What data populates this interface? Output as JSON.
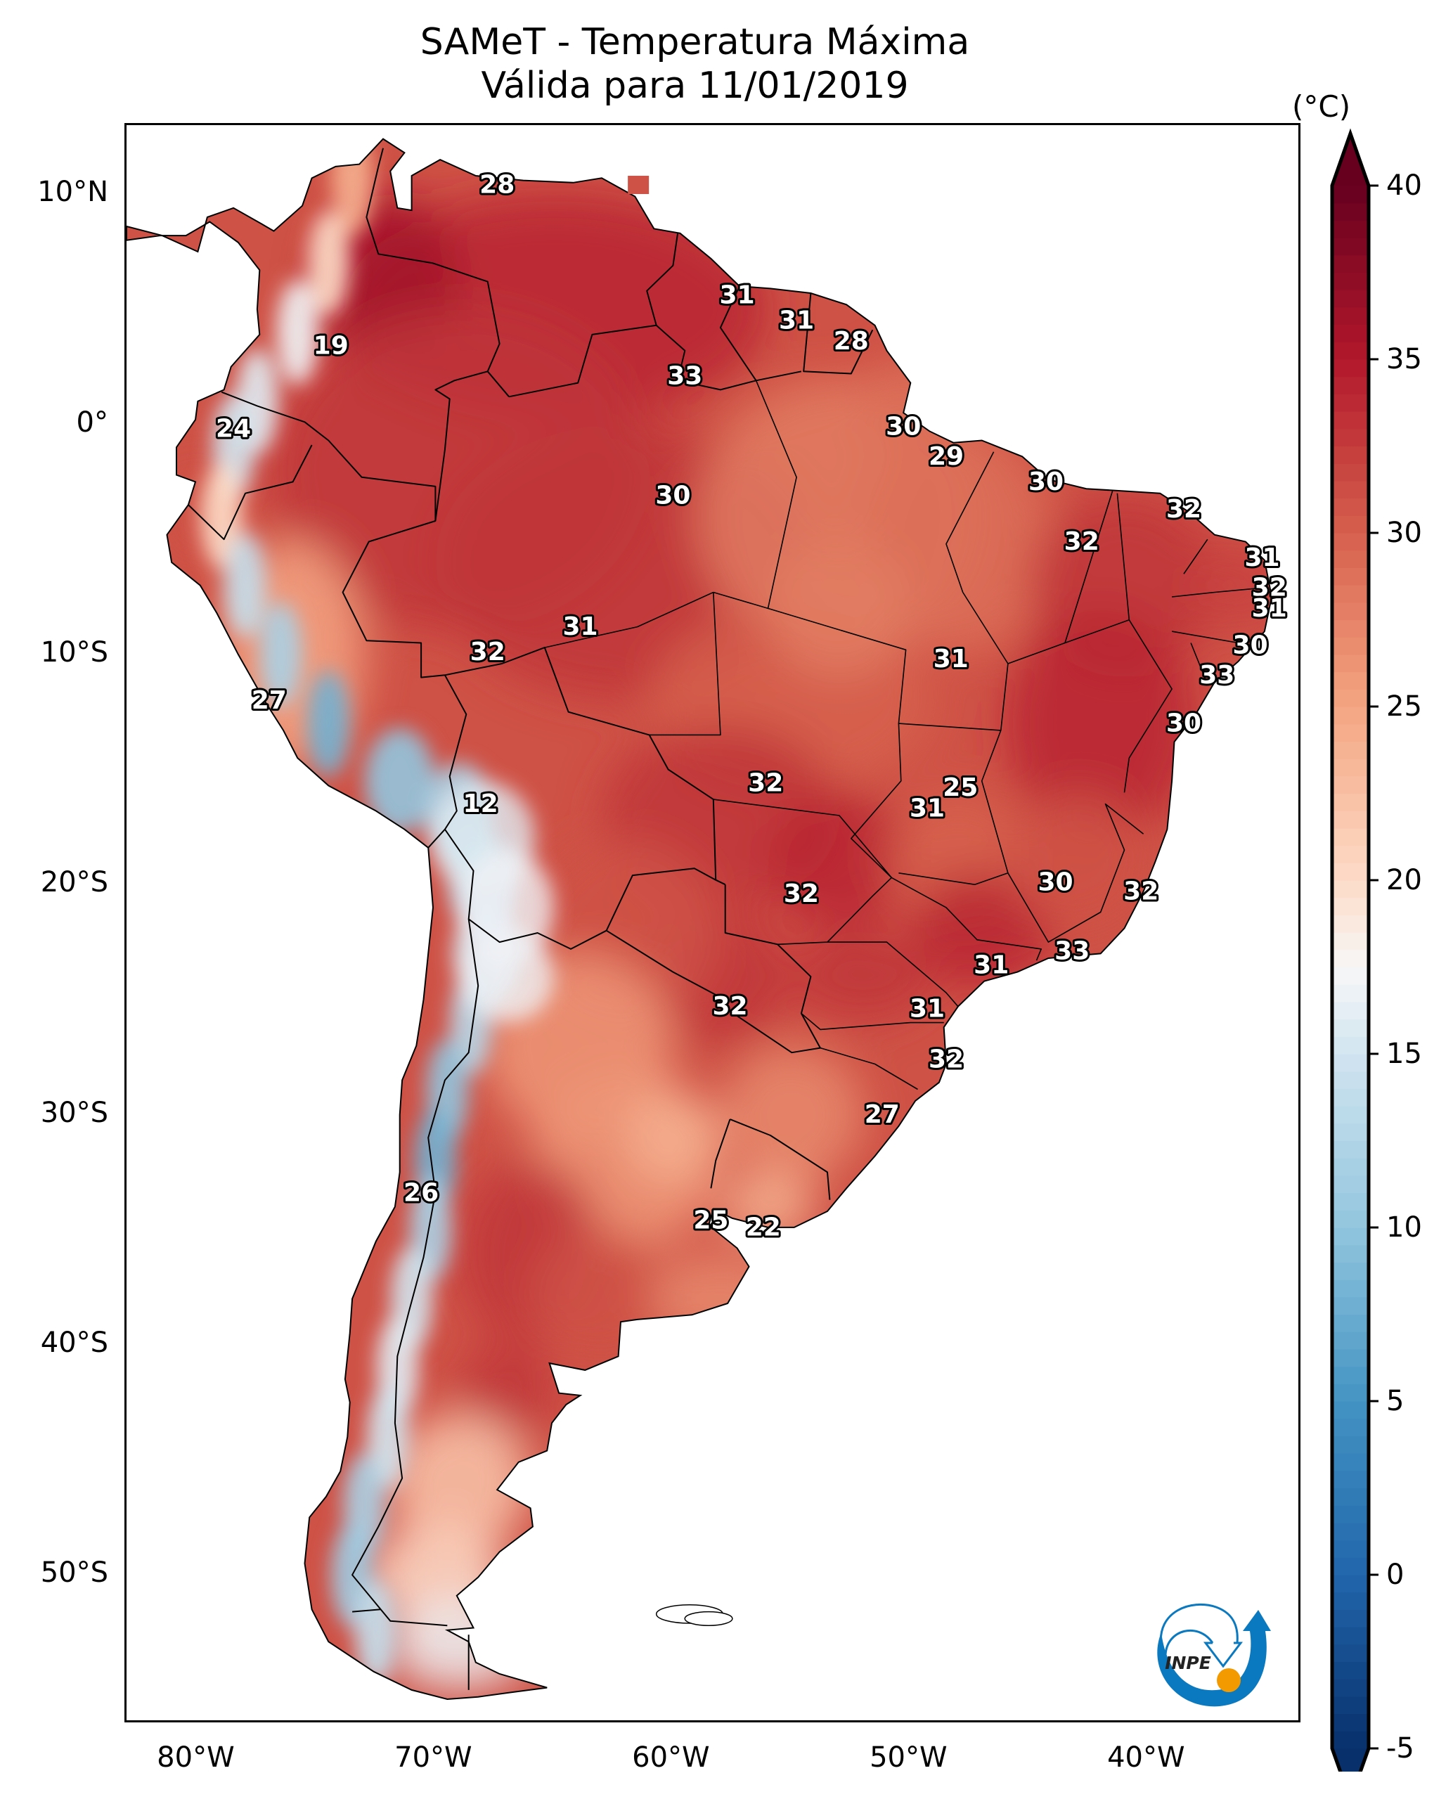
{
  "title": {
    "line1": "SAMeT - Temperatura Máxima",
    "line2": "Válida para 11/01/2019"
  },
  "chart_data": {
    "type": "heatmap",
    "title": "SAMeT - Temperatura Máxima — Válida para 11/01/2019",
    "variable": "Maximum temperature",
    "units": "(°C)",
    "region": "South America",
    "lon_range": [
      -83,
      -33.5
    ],
    "lat_range": [
      -56.5,
      13
    ],
    "lat_ticks": [
      {
        "value": 10,
        "label": "10°N"
      },
      {
        "value": 0,
        "label": "0°"
      },
      {
        "value": -10,
        "label": "10°S"
      },
      {
        "value": -20,
        "label": "20°S"
      },
      {
        "value": -30,
        "label": "30°S"
      },
      {
        "value": -40,
        "label": "40°S"
      },
      {
        "value": -50,
        "label": "50°S"
      }
    ],
    "lon_ticks": [
      {
        "value": -80,
        "label": "80°W"
      },
      {
        "value": -70,
        "label": "70°W"
      },
      {
        "value": -60,
        "label": "60°W"
      },
      {
        "value": -50,
        "label": "50°W"
      },
      {
        "value": -40,
        "label": "40°W"
      }
    ],
    "colorbar": {
      "label": "(°C)",
      "min": -5,
      "max": 40,
      "extend": "both",
      "colormap": "RdBu_r",
      "ticks": [
        40,
        35,
        30,
        25,
        20,
        15,
        10,
        5,
        0,
        -5
      ],
      "stops": [
        {
          "value": -5,
          "color": "#08306b"
        },
        {
          "value": 0,
          "color": "#2166ac"
        },
        {
          "value": 5,
          "color": "#4393c3"
        },
        {
          "value": 10,
          "color": "#92c5de"
        },
        {
          "value": 15,
          "color": "#d1e5f0"
        },
        {
          "value": 17.5,
          "color": "#f7f7f7"
        },
        {
          "value": 20,
          "color": "#fddbc7"
        },
        {
          "value": 25,
          "color": "#f4a582"
        },
        {
          "value": 30,
          "color": "#d6604d"
        },
        {
          "value": 35,
          "color": "#b2182b"
        },
        {
          "value": 40,
          "color": "#67001f"
        }
      ]
    },
    "city_values": [
      {
        "lon": -67.4,
        "lat": 10.4,
        "value": 28
      },
      {
        "lon": -57.3,
        "lat": 5.6,
        "value": 31
      },
      {
        "lon": -54.8,
        "lat": 4.5,
        "value": 31
      },
      {
        "lon": -52.5,
        "lat": 3.6,
        "value": 28
      },
      {
        "lon": -74.4,
        "lat": 3.4,
        "value": 19
      },
      {
        "lon": -59.5,
        "lat": 2.1,
        "value": 33
      },
      {
        "lon": -78.5,
        "lat": -0.2,
        "value": 24
      },
      {
        "lon": -50.3,
        "lat": -0.1,
        "value": 30
      },
      {
        "lon": -48.5,
        "lat": -1.4,
        "value": 29
      },
      {
        "lon": -60.0,
        "lat": -3.1,
        "value": 30
      },
      {
        "lon": -44.3,
        "lat": -2.5,
        "value": 30
      },
      {
        "lon": -38.5,
        "lat": -3.7,
        "value": 32
      },
      {
        "lon": -42.8,
        "lat": -5.1,
        "value": 32
      },
      {
        "lon": -35.2,
        "lat": -5.8,
        "value": 31
      },
      {
        "lon": -34.9,
        "lat": -7.1,
        "value": 32
      },
      {
        "lon": -34.9,
        "lat": -8.0,
        "value": 31
      },
      {
        "lon": -63.9,
        "lat": -8.8,
        "value": 31
      },
      {
        "lon": -67.8,
        "lat": -9.9,
        "value": 32
      },
      {
        "lon": -48.3,
        "lat": -10.2,
        "value": 31
      },
      {
        "lon": -35.7,
        "lat": -9.6,
        "value": 30
      },
      {
        "lon": -37.1,
        "lat": -10.9,
        "value": 33
      },
      {
        "lon": -77.0,
        "lat": -12.0,
        "value": 27
      },
      {
        "lon": -38.5,
        "lat": -13.0,
        "value": 30
      },
      {
        "lon": -47.9,
        "lat": -15.8,
        "value": 25
      },
      {
        "lon": -56.1,
        "lat": -15.6,
        "value": 32
      },
      {
        "lon": -49.3,
        "lat": -16.7,
        "value": 31
      },
      {
        "lon": -68.1,
        "lat": -16.5,
        "value": 12
      },
      {
        "lon": -43.9,
        "lat": -19.9,
        "value": 30
      },
      {
        "lon": -40.3,
        "lat": -20.3,
        "value": 32
      },
      {
        "lon": -54.6,
        "lat": -20.4,
        "value": 32
      },
      {
        "lon": -43.2,
        "lat": -22.9,
        "value": 33
      },
      {
        "lon": -46.6,
        "lat": -23.5,
        "value": 31
      },
      {
        "lon": -57.6,
        "lat": -25.3,
        "value": 32
      },
      {
        "lon": -49.3,
        "lat": -25.4,
        "value": 31
      },
      {
        "lon": -48.5,
        "lat": -27.6,
        "value": 32
      },
      {
        "lon": -51.2,
        "lat": -30.0,
        "value": 27
      },
      {
        "lon": -70.6,
        "lat": -33.4,
        "value": 26
      },
      {
        "lon": -58.4,
        "lat": -34.6,
        "value": 25
      },
      {
        "lon": -56.2,
        "lat": -34.9,
        "value": 22
      }
    ]
  },
  "logo": {
    "text": "INPE",
    "colors": {
      "blue": "#0a79bf",
      "orange": "#f39a00"
    }
  }
}
